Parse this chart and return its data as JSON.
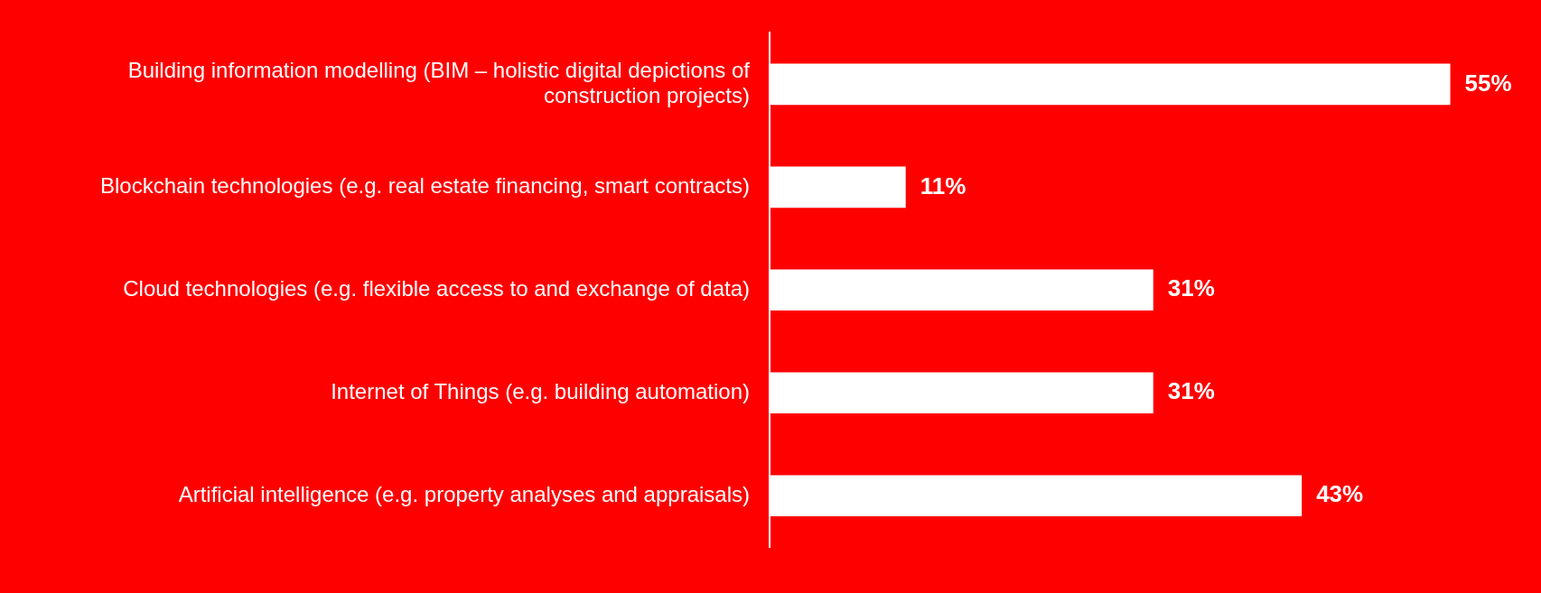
{
  "chart_data": {
    "type": "bar",
    "orientation": "horizontal",
    "categories": [
      "Building information modelling (BIM – holistic digital depictions of construction projects)",
      "Blockchain technologies (e.g. real estate financing, smart contracts)",
      "Cloud technologies (e.g. flexible access to and exchange of data)",
      "Internet of Things (e.g. building automation)",
      "Artificial intelligence (e.g. property analyses and appraisals)"
    ],
    "values": [
      55,
      11,
      31,
      31,
      43
    ],
    "value_labels": [
      "55%",
      "11%",
      "31%",
      "31%",
      "43%"
    ],
    "color": "#ffffff",
    "grid": false,
    "legend": false
  }
}
